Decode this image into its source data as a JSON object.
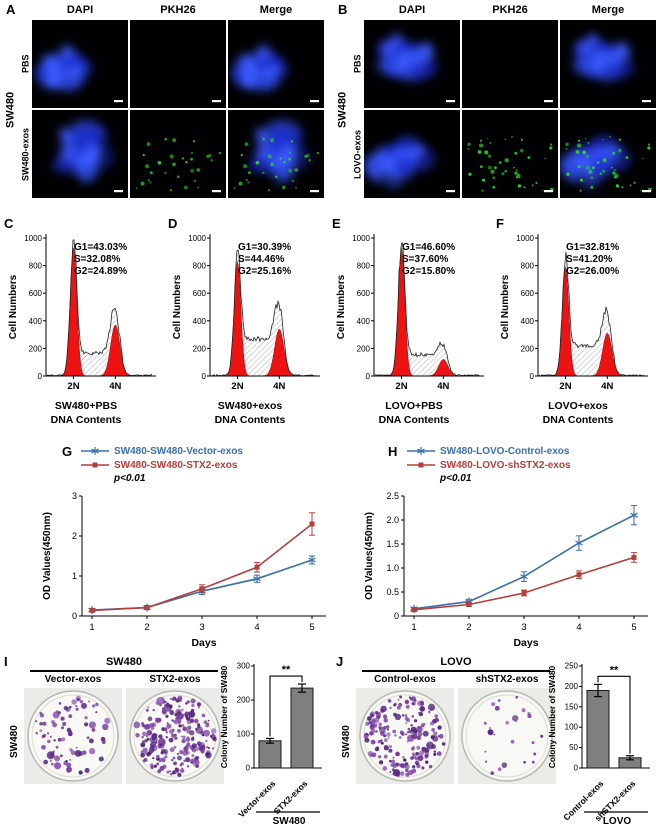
{
  "colors": {
    "blue_series": "#3a6fae",
    "red_series": "#b23f3c",
    "flow_red": "#ee1313",
    "bar_gray": "#7f7f7f",
    "colony_purple": "#6a2d91",
    "dapi_blue": "#2233dd",
    "pkh_green": "#2fd42f"
  },
  "microscopy": {
    "panels": [
      {
        "letter": "A",
        "columns": [
          "DAPI",
          "PKH26",
          "Merge"
        ],
        "side_label": "SW480",
        "rows": [
          {
            "label": "PBS"
          },
          {
            "label": "SW480-exos"
          }
        ]
      },
      {
        "letter": "B",
        "columns": [
          "DAPI",
          "PKH26",
          "Merge"
        ],
        "side_label": "SW480",
        "rows": [
          {
            "label": "PBS"
          },
          {
            "label": "LOVO-exos"
          }
        ]
      }
    ]
  },
  "colony_assay": {
    "panels": [
      {
        "letter": "I",
        "header": "SW480",
        "side_label": "SW480",
        "dish_labels": [
          "Vector-exos",
          "STX2-exos"
        ],
        "dish_counts": [
          80,
          235
        ]
      },
      {
        "letter": "J",
        "header": "LOVO",
        "side_label": "SW480",
        "dish_labels": [
          "Control-exos",
          "shSTX2-exos"
        ],
        "dish_counts": [
          190,
          25
        ]
      }
    ]
  },
  "chart_data": [
    {
      "type": "area",
      "subtype": "flow-cytometry-histogram",
      "letter": "C",
      "title": "SW480+PBS",
      "xlabel": "DNA Contents",
      "ylabel": "Cell Numbers",
      "xticks": [
        "2N",
        "4N"
      ],
      "yticks": [
        0,
        200,
        400,
        600,
        800,
        1000
      ],
      "ylim": [
        0,
        1000
      ],
      "stats": [
        "G1=43.03%",
        "S=32.08%",
        "G2=24.89%"
      ],
      "peaks": {
        "g1": 930,
        "s": 160,
        "g2": 370
      }
    },
    {
      "type": "area",
      "subtype": "flow-cytometry-histogram",
      "letter": "D",
      "title": "SW480+exos",
      "xlabel": "DNA Contents",
      "ylabel": "Cell Numbers",
      "xticks": [
        "2N",
        "4N"
      ],
      "yticks": [
        0,
        200,
        400,
        600,
        800,
        1000
      ],
      "ylim": [
        0,
        1000
      ],
      "stats": [
        "G1=30.39%",
        "S=44.46%",
        "G2=25.16%"
      ],
      "peaks": {
        "g1": 830,
        "s": 260,
        "g2": 340
      }
    },
    {
      "type": "area",
      "subtype": "flow-cytometry-histogram",
      "letter": "E",
      "title": "LOVO+PBS",
      "xlabel": "DNA Contents",
      "ylabel": "Cell Numbers",
      "xticks": [
        "2N",
        "4N"
      ],
      "yticks": [
        0,
        200,
        400,
        600,
        800,
        1000
      ],
      "ylim": [
        0,
        1000
      ],
      "stats": [
        "G1=46.60%",
        "S=37.60%",
        "G2=15.80%"
      ],
      "peaks": {
        "g1": 930,
        "s": 150,
        "g2": 120
      }
    },
    {
      "type": "area",
      "subtype": "flow-cytometry-histogram",
      "letter": "F",
      "title": "LOVO+exos",
      "xlabel": "DNA Contents",
      "ylabel": "Cell Numbers",
      "xticks": [
        "2N",
        "4N"
      ],
      "yticks": [
        0,
        200,
        400,
        600,
        800,
        1000
      ],
      "ylim": [
        0,
        1000
      ],
      "stats": [
        "G1=32.81%",
        "S=41.20%",
        "G2=26.00%"
      ],
      "peaks": {
        "g1": 790,
        "s": 210,
        "g2": 310
      }
    },
    {
      "type": "line",
      "letter": "G",
      "xlabel": "Days",
      "ylabel": "OD Values(450nm)",
      "x": [
        1,
        2,
        3,
        4,
        5
      ],
      "ylim": [
        0,
        3
      ],
      "yticks": [
        0,
        1,
        2,
        3
      ],
      "tick_decimals": 0,
      "annotation": "p<0.01",
      "legend_position": "top-left",
      "series": [
        {
          "name": "SW480-SW480-Vector-exos",
          "color": "#3a6fae",
          "marker": "star",
          "values": [
            0.15,
            0.21,
            0.62,
            0.93,
            1.4
          ],
          "errors": [
            0.03,
            0.04,
            0.08,
            0.09,
            0.1
          ]
        },
        {
          "name": "SW480-SW480-STX2-exos",
          "color": "#b23f3c",
          "marker": "square",
          "values": [
            0.14,
            0.21,
            0.68,
            1.22,
            2.3
          ],
          "errors": [
            0.03,
            0.05,
            0.1,
            0.12,
            0.28
          ]
        }
      ]
    },
    {
      "type": "line",
      "letter": "H",
      "xlabel": "Days",
      "ylabel": "OD Values(450nm)",
      "x": [
        1,
        2,
        3,
        4,
        5
      ],
      "ylim": [
        0,
        2.5
      ],
      "yticks": [
        0,
        0.5,
        1,
        1.5,
        2,
        2.5
      ],
      "tick_decimals": 1,
      "annotation": "p<0.01",
      "legend_position": "top-left",
      "series": [
        {
          "name": "SW480-LOVO-Control-exos",
          "color": "#3a6fae",
          "marker": "star",
          "values": [
            0.15,
            0.3,
            0.82,
            1.52,
            2.1
          ],
          "errors": [
            0.03,
            0.05,
            0.1,
            0.15,
            0.2
          ]
        },
        {
          "name": "SW480-LOVO-shSTX2-exos",
          "color": "#b23f3c",
          "marker": "square",
          "values": [
            0.13,
            0.24,
            0.48,
            0.86,
            1.22
          ],
          "errors": [
            0.03,
            0.04,
            0.06,
            0.08,
            0.1
          ]
        }
      ]
    },
    {
      "type": "bar",
      "letter": "I",
      "ylabel": "Colony Number of SW480",
      "categories": [
        "Vector-exos",
        "STX2-exos"
      ],
      "values": [
        80,
        235
      ],
      "errors": [
        7,
        12
      ],
      "ylim": [
        0,
        300
      ],
      "yticks": [
        0,
        100,
        200,
        300
      ],
      "significance": "**",
      "group_label": "SW480"
    },
    {
      "type": "bar",
      "letter": "J",
      "ylabel": "Colony Number of SW480",
      "categories": [
        "Control-exos",
        "shSTX2-exos"
      ],
      "values": [
        190,
        25
      ],
      "errors": [
        15,
        5
      ],
      "ylim": [
        0,
        250
      ],
      "yticks": [
        0,
        50,
        100,
        150,
        200,
        250
      ],
      "significance": "**",
      "group_label": "LOVO"
    }
  ]
}
